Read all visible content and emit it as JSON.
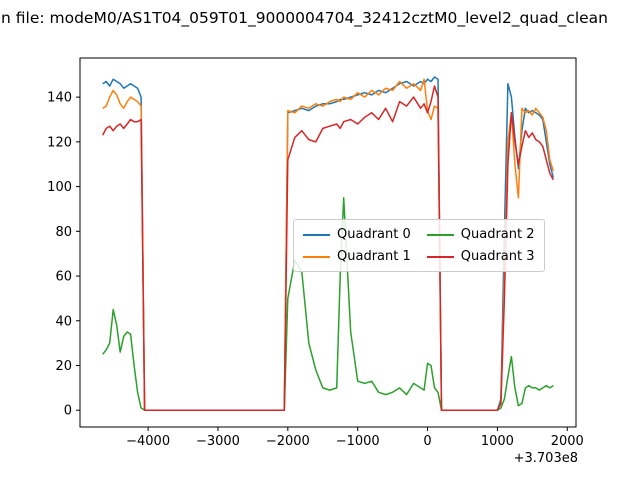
{
  "window": {
    "title_visible": "n file: modeM0/AS1T04_059T01_9000004704_32412cztM0_level2_quad_clean"
  },
  "chart_data": {
    "type": "line",
    "title": "n file: modeM0/AS1T04_059T01_9000004704_32412cztM0_level2_quad_clean",
    "xlabel": "",
    "ylabel": "",
    "x_offset_label": "+3.703e8",
    "xlim": [
      -4975,
      2125
    ],
    "ylim": [
      -7.5,
      157.5
    ],
    "xticks": [
      -4000,
      -3000,
      -2000,
      -1000,
      0,
      1000,
      2000
    ],
    "yticks": [
      0,
      20,
      40,
      60,
      80,
      100,
      120,
      140
    ],
    "grid": false,
    "legend": {
      "position": "center",
      "columns": 2
    },
    "x": [
      -4650,
      -4600,
      -4550,
      -4500,
      -4450,
      -4400,
      -4350,
      -4300,
      -4250,
      -4200,
      -4150,
      -4100,
      -4050,
      -4000,
      -3500,
      -3000,
      -2500,
      -2050,
      -2000,
      -1900,
      -1800,
      -1700,
      -1600,
      -1500,
      -1400,
      -1300,
      -1250,
      -1200,
      -1100,
      -1000,
      -900,
      -800,
      -700,
      -600,
      -500,
      -400,
      -300,
      -200,
      -100,
      -50,
      0,
      50,
      100,
      150,
      200,
      400,
      600,
      800,
      1000,
      1050,
      1100,
      1150,
      1200,
      1250,
      1300,
      1350,
      1400,
      1450,
      1500,
      1550,
      1600,
      1650,
      1700,
      1750,
      1800
    ],
    "series": [
      {
        "name": "Quadrant 0",
        "color": "#1f77b4",
        "values": [
          146,
          147,
          145,
          148,
          147,
          146,
          144,
          145,
          146,
          145,
          144,
          140,
          0,
          0,
          0,
          0,
          0,
          0,
          133,
          134,
          135,
          134,
          136,
          137,
          137,
          138,
          139,
          139,
          140,
          141,
          142,
          141,
          143,
          142,
          144,
          146,
          147,
          145,
          147,
          146,
          148,
          147,
          149,
          148,
          0,
          0,
          0,
          0,
          0,
          5,
          80,
          146,
          140,
          122,
          108,
          125,
          135,
          133,
          134,
          133,
          132,
          130,
          120,
          110,
          104
        ]
      },
      {
        "name": "Quadrant 1",
        "color": "#ff7f0e",
        "values": [
          135,
          136,
          140,
          143,
          141,
          137,
          135,
          138,
          140,
          139,
          138,
          136,
          0,
          0,
          0,
          0,
          0,
          0,
          134,
          133,
          136,
          135,
          137,
          136,
          138,
          139,
          138,
          140,
          139,
          142,
          140,
          143,
          141,
          144,
          143,
          147,
          144,
          146,
          143,
          148,
          134,
          130,
          136,
          135,
          0,
          0,
          0,
          0,
          0,
          3,
          60,
          120,
          133,
          110,
          95,
          135,
          133,
          134,
          132,
          135,
          133,
          131,
          125,
          112,
          107
        ]
      },
      {
        "name": "Quadrant 2",
        "color": "#2ca02c",
        "values": [
          25,
          27,
          30,
          45,
          38,
          26,
          33,
          35,
          34,
          20,
          8,
          1,
          0,
          0,
          0,
          0,
          0,
          0,
          50,
          67,
          62,
          30,
          18,
          10,
          9,
          10,
          60,
          95,
          35,
          13,
          12,
          13,
          8,
          7,
          8,
          10,
          7,
          12,
          10,
          9,
          21,
          20,
          10,
          8,
          0,
          0,
          0,
          0,
          0,
          1,
          5,
          15,
          24,
          10,
          2,
          3,
          10,
          11,
          10,
          10,
          9,
          10,
          11,
          10,
          11
        ]
      },
      {
        "name": "Quadrant 3",
        "color": "#d62728",
        "values": [
          123,
          126,
          127,
          125,
          127,
          128,
          126,
          128,
          130,
          129,
          129,
          130,
          0,
          0,
          0,
          0,
          0,
          0,
          112,
          122,
          125,
          121,
          120,
          126,
          127,
          128,
          126,
          129,
          130,
          128,
          131,
          133,
          130,
          135,
          129,
          138,
          136,
          140,
          135,
          137,
          133,
          138,
          145,
          140,
          0,
          0,
          0,
          0,
          0,
          3,
          50,
          110,
          133,
          120,
          110,
          118,
          125,
          122,
          124,
          121,
          120,
          118,
          112,
          106,
          103
        ]
      }
    ]
  }
}
